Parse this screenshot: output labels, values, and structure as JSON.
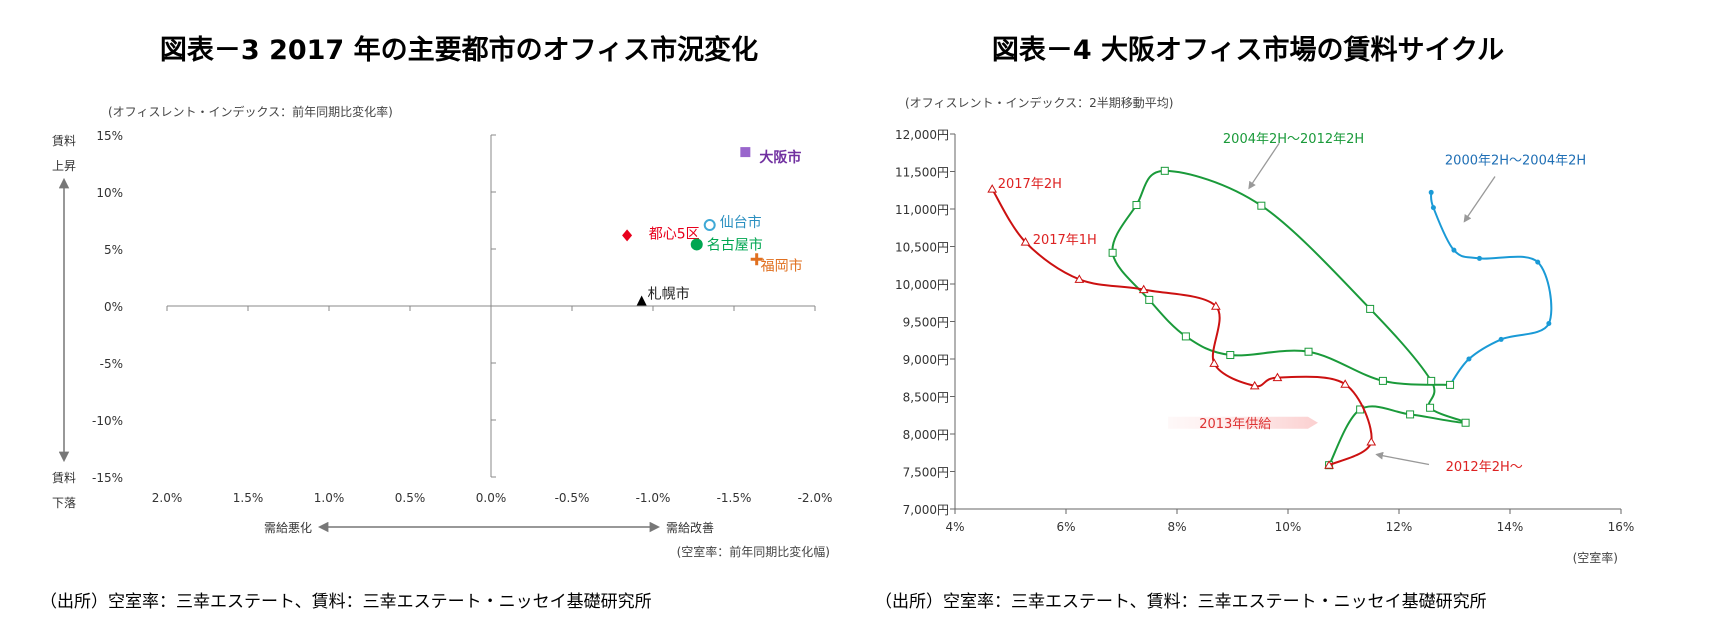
{
  "chart_data": [
    {
      "type": "scatter",
      "title": "図表－3  2017 年の主要都市のオフィス市況変化",
      "ylabel": "(オフィスレント・インデックス：前年同期比変化率)",
      "xlabel": "(空室率：前年同期比変化幅)",
      "y_up_label": [
        "賃料",
        "上昇"
      ],
      "y_down_label": [
        "賃料",
        "下落"
      ],
      "x_left_label": "需給悪化",
      "x_right_label": "需給改善",
      "xlim": [
        2.0,
        -2.0
      ],
      "ylim": [
        -15,
        15
      ],
      "x_ticks": [
        "2.0%",
        "1.5%",
        "1.0%",
        "0.5%",
        "0.0%",
        "-0.5%",
        "-1.0%",
        "-1.5%",
        "-2.0%"
      ],
      "y_ticks": [
        "15%",
        "10%",
        "5%",
        "0%",
        "-5%",
        "-10%",
        "-15%"
      ],
      "points": [
        {
          "name": "大阪市",
          "x": -1.57,
          "y": 13.5,
          "marker": "square",
          "color": "#9966cc",
          "label_color": "#7030a0"
        },
        {
          "name": "都心5区",
          "x": -0.84,
          "y": 6.2,
          "marker": "diamond",
          "color": "#e8001c",
          "label_color": "#e8001c"
        },
        {
          "name": "仙台市",
          "x": -1.35,
          "y": 7.1,
          "marker": "open-circle",
          "color": "#3fa9d6",
          "label_color": "#2a8fc0"
        },
        {
          "name": "名古屋市",
          "x": -1.27,
          "y": 5.4,
          "marker": "circle",
          "color": "#00a651",
          "label_color": "#00a651"
        },
        {
          "name": "福岡市",
          "x": -1.64,
          "y": 4.1,
          "marker": "plus",
          "color": "#e07020",
          "label_color": "#e07020"
        },
        {
          "name": "札幌市",
          "x": -0.93,
          "y": 0.4,
          "marker": "triangle",
          "color": "#000000",
          "label_color": "#222222"
        }
      ],
      "source": "（出所）空室率：三幸エステート、賃料：三幸エステート・ニッセイ基礎研究所"
    },
    {
      "type": "line",
      "title": "図表－4  大阪オフィス市場の賃料サイクル",
      "ylabel": "(オフィスレント・インデックス：2半期移動平均)",
      "xlabel": "(空室率)",
      "xlim": [
        4,
        16
      ],
      "ylim": [
        7000,
        12000
      ],
      "x_ticks": [
        "4%",
        "6%",
        "8%",
        "10%",
        "12%",
        "14%",
        "16%"
      ],
      "y_ticks": [
        "12,000円",
        "11,500円",
        "11,000円",
        "10,500円",
        "10,000円",
        "9,500円",
        "9,000円",
        "8,500円",
        "8,000円",
        "7,500円",
        "7,000円"
      ],
      "series": [
        {
          "label": "2000年2H～2004年2H",
          "color": "#1a9ad6",
          "label_color": "#1f6fb5",
          "marker": "star",
          "x": [
            12.58,
            12.62,
            12.99,
            13.45,
            14.5,
            14.7,
            13.84,
            13.26,
            12.92
          ],
          "y": [
            11221,
            11018,
            10451,
            10341,
            10292,
            9473,
            9261,
            9000,
            8655
          ]
        },
        {
          "label": "2004年2H～2012年2H",
          "color": "#1a9a3a",
          "label_color": "#1a9a3a",
          "marker": "square",
          "x": [
            12.92,
            11.71,
            10.37,
            8.96,
            8.16,
            7.5,
            6.84,
            7.27,
            7.78,
            9.52,
            11.48,
            12.58,
            12.56,
            13.2,
            12.2,
            11.3,
            10.74
          ],
          "y": [
            8655,
            8708,
            9097,
            9053,
            9301,
            9788,
            10416,
            11053,
            11509,
            11044,
            9668,
            8708,
            8350,
            8150,
            8261,
            8327,
            7584
          ]
        },
        {
          "label": "2012年2H～",
          "color": "#cc1111",
          "label_color": "#dd2222",
          "marker": "triangle",
          "x": [
            10.74,
            11.5,
            11.03,
            9.81,
            9.4,
            8.67,
            8.7,
            7.4,
            6.24,
            5.27,
            4.67
          ],
          "y": [
            7584,
            7894,
            8664,
            8752,
            8642,
            8942,
            9704,
            9925,
            10062,
            10558,
            11265
          ]
        }
      ],
      "annotations": {
        "p2017_2h": "2017年2H",
        "p2017_1h": "2017年1H",
        "supply_2013": "2013年供給"
      },
      "source": "（出所）空室率：三幸エステート、賃料：三幸エステート・ニッセイ基礎研究所"
    }
  ]
}
